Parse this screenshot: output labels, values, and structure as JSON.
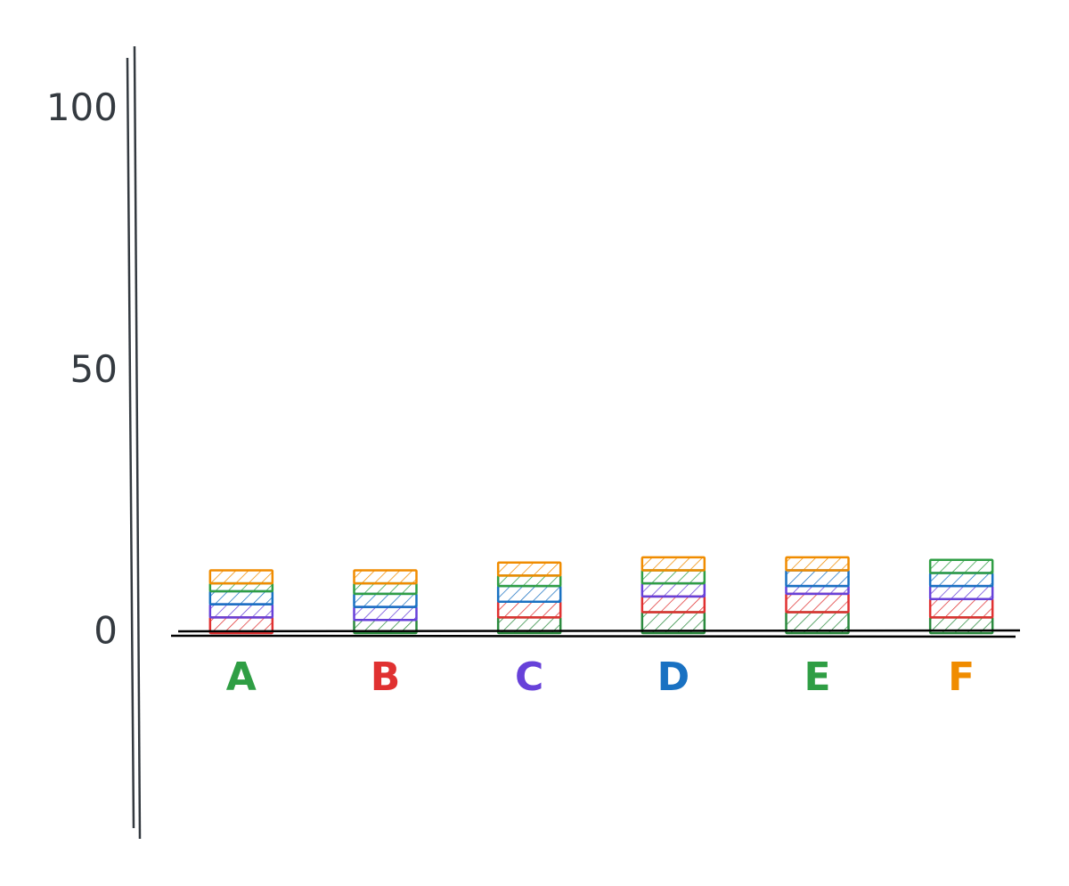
{
  "chart_data": {
    "type": "stacked_bar",
    "categories": [
      "A",
      "B",
      "C",
      "D",
      "E",
      "F"
    ],
    "category_colors": [
      "#2f9e44",
      "#e03131",
      "#6741d9",
      "#1971c2",
      "#2f9e44",
      "#f08c00"
    ],
    "series": [
      {
        "color": "#2b8a3e",
        "values": [
          0,
          2.5,
          3,
          4,
          4,
          3
        ]
      },
      {
        "color": "#e03131",
        "values": [
          3,
          0,
          3,
          3,
          3.5,
          3.5
        ]
      },
      {
        "color": "#6741d9",
        "values": [
          2.5,
          2.5,
          0,
          2.5,
          1.5,
          2.5
        ]
      },
      {
        "color": "#1971c2",
        "values": [
          2.5,
          2.5,
          3,
          0,
          3,
          2.5
        ]
      },
      {
        "color": "#2f9e44",
        "values": [
          1.5,
          2,
          2,
          2.5,
          0,
          2.5
        ]
      },
      {
        "color": "#f08c00",
        "values": [
          2.5,
          2.5,
          2.5,
          2.5,
          2.5,
          0
        ]
      }
    ],
    "ylim": [
      -39,
      110
    ],
    "yticks": [
      0,
      50,
      100
    ],
    "grid": false,
    "hatched": true
  }
}
